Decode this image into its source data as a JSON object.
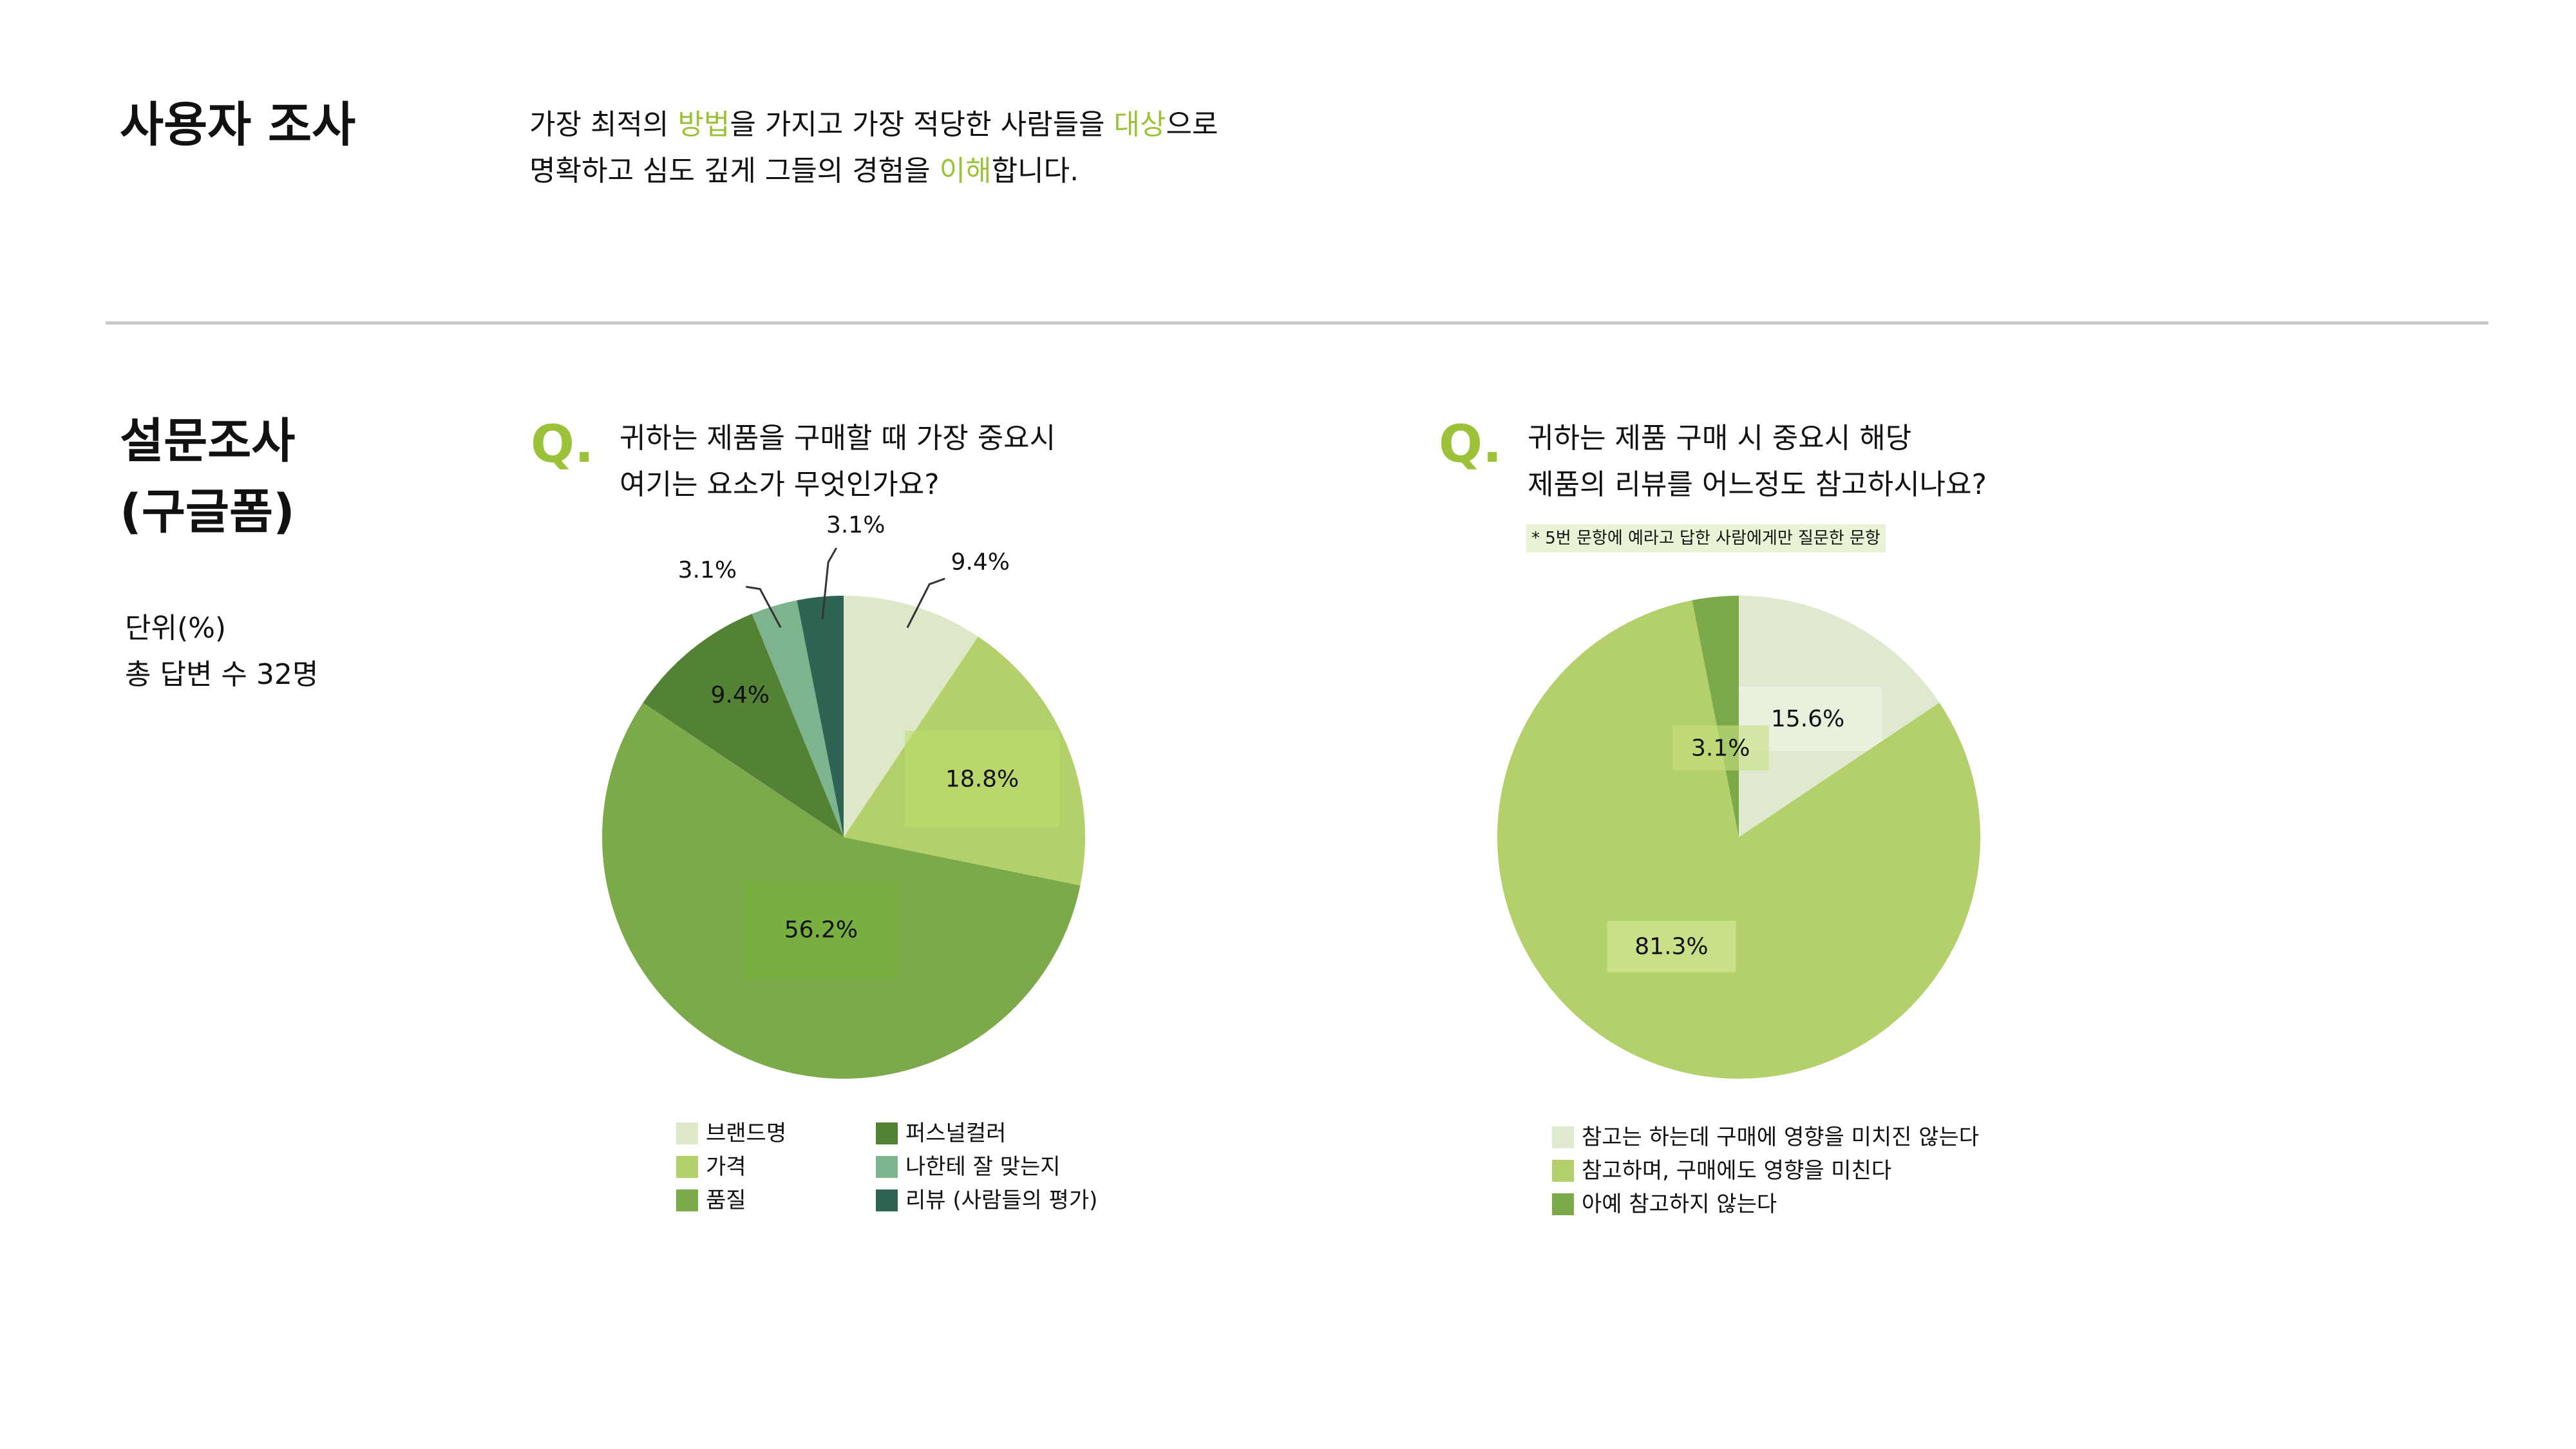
{
  "header": {
    "title": "사용자 조사",
    "intro_line1": [
      {
        "text": "가장 최적의 ",
        "hl": false
      },
      {
        "text": "방법",
        "hl": true
      },
      {
        "text": "을 가지고 가장 적당한 사람들을 ",
        "hl": false
      },
      {
        "text": "대상",
        "hl": true
      },
      {
        "text": "으로",
        "hl": false
      }
    ],
    "intro_line2": [
      {
        "text": "명확하고 심도 깊게 그들의 경험을 ",
        "hl": false
      },
      {
        "text": "이해",
        "hl": true
      },
      {
        "text": "합니다.",
        "hl": false
      }
    ],
    "highlight_color": "#9cc23a"
  },
  "section": {
    "title_line1": "설문조사",
    "title_line2": "(구글폼)",
    "unit_line": "단위(%)",
    "respondents_line": "총 답변 수 32명"
  },
  "q1": {
    "mark": "Q.",
    "line1": "귀하는 제품을 구매할 때 가장 중요시",
    "line2": "여기는 요소가 무엇인가요?"
  },
  "q2": {
    "mark": "Q.",
    "line1": "귀하는 제품 구매 시 중요시 해당",
    "line2": "제품의 리뷰를 어느정도 참고하시나요?",
    "note": "* 5번 문항에 예라고 답한 사람에게만 질문한 문항"
  },
  "chart_data": [
    {
      "type": "pie",
      "labels": [
        "브랜드명",
        "가격",
        "품질",
        "퍼스널컬러",
        "나한테 잘 맞는지",
        "리뷰 (사람들의 평가)"
      ],
      "values": [
        9.4,
        18.8,
        56.2,
        9.4,
        3.1,
        3.1
      ],
      "data_labels": [
        "9.4%",
        "18.8%",
        "56.2%",
        "9.4%",
        "3.1%",
        "3.1%"
      ],
      "colors": [
        "#dde8c8",
        "#b3d06a",
        "#7ca94a",
        "#548234",
        "#7db38d",
        "#2f6455"
      ],
      "legend_position": "bottom"
    },
    {
      "type": "pie",
      "labels": [
        "참고는 하는데 구매에 영향을 미치진 않는다",
        "참고하며, 구매에도 영향을 미친다",
        "아예 참고하지 않는다"
      ],
      "values": [
        15.6,
        81.3,
        3.1
      ],
      "data_labels": [
        "15.6%",
        "81.3%",
        "3.1%"
      ],
      "colors": [
        "#dfe9cf",
        "#b3d06a",
        "#7ca94a"
      ],
      "legend_position": "bottom"
    }
  ]
}
